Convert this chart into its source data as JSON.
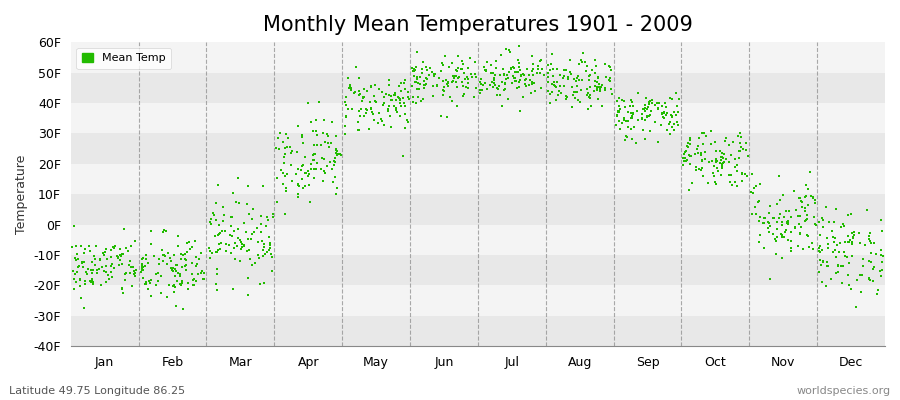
{
  "title": "Monthly Mean Temperatures 1901 - 2009",
  "ylabel": "Temperature",
  "xlabel_bottom_left": "Latitude 49.75 Longitude 86.25",
  "xlabel_bottom_right": "worldspecies.org",
  "legend_label": "Mean Temp",
  "yticks": [
    -40,
    -30,
    -20,
    -10,
    0,
    10,
    20,
    30,
    40,
    50,
    60
  ],
  "ytick_labels": [
    "-40F",
    "-30F",
    "-20F",
    "-10F",
    "0F",
    "10F",
    "20F",
    "30F",
    "40F",
    "50F",
    "60F"
  ],
  "ylim": [
    -40,
    60
  ],
  "months": [
    "Jan",
    "Feb",
    "Mar",
    "Apr",
    "May",
    "Jun",
    "Jul",
    "Aug",
    "Sep",
    "Oct",
    "Nov",
    "Dec"
  ],
  "dot_color": "#22bb00",
  "background_color": "#ffffff",
  "plot_bg_color": "#ffffff",
  "band_color_dark": "#e8e8e8",
  "band_color_light": "#f4f4f4",
  "grid_color": "#cccccc",
  "title_fontsize": 15,
  "axis_label_fontsize": 9,
  "tick_fontsize": 9,
  "n_years": 109,
  "seed": 42,
  "monthly_mean_temps_F": [
    -14,
    -15,
    -4,
    22,
    40,
    47,
    49,
    46,
    36,
    22,
    2,
    -9
  ],
  "monthly_std_F": [
    5,
    6,
    7,
    7,
    5,
    4,
    4,
    4,
    4,
    5,
    7,
    7
  ]
}
